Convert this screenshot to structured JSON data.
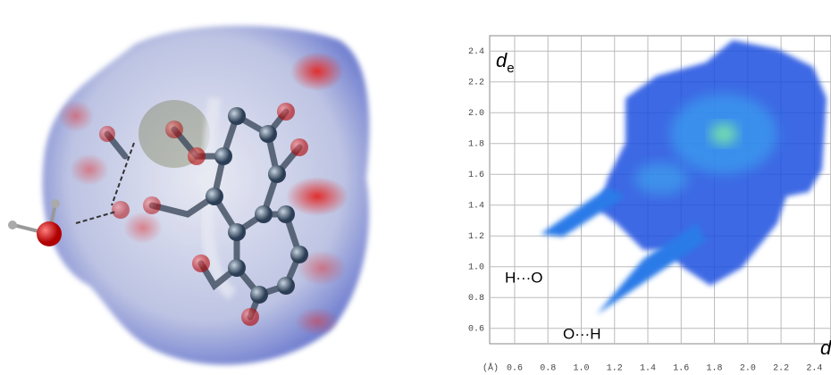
{
  "chart_data": {
    "type": "fingerprint",
    "ylabel_symbol": "d",
    "ylabel_subscript": "e",
    "xlabel_symbol": "d",
    "x_unit": "(Å)",
    "annotations": [
      "H···O",
      "O···H"
    ],
    "xlim": [
      0.45,
      2.5
    ],
    "ylim": [
      0.5,
      2.5
    ],
    "xticks": [
      0.6,
      0.8,
      {
        "value": 1,
        "label": "1.0"
      },
      1.2,
      1.4,
      1.6,
      1.8,
      {
        "value": 2,
        "label": "2.0"
      },
      2.2,
      2.4
    ],
    "yticks": [
      0.6,
      0.8,
      {
        "value": 1,
        "label": "1.0"
      },
      1.2,
      1.4,
      1.6,
      1.8,
      {
        "value": 2,
        "label": "2.0"
      },
      2.2,
      2.4
    ],
    "grid": true
  }
}
